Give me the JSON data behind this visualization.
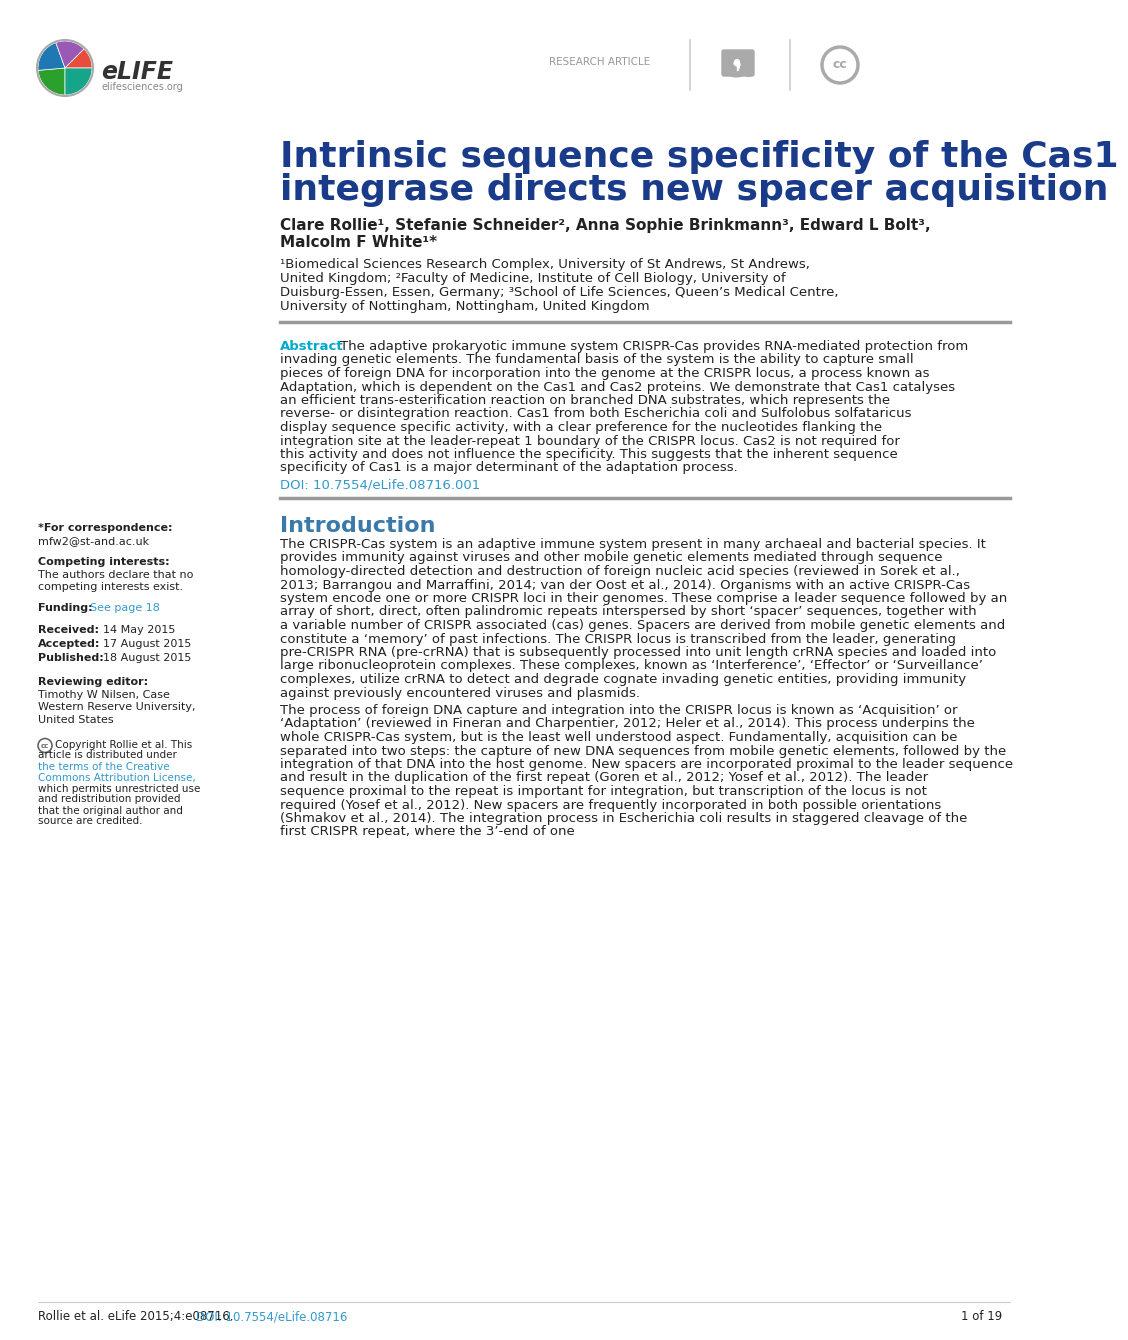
{
  "background_color": "#ffffff",
  "page_width": 10.2,
  "page_height": 13.2,
  "header_logo_text": "eLIFE",
  "header_logo_sub": "elifesciences.org",
  "header_research_article": "RESEARCH ARTICLE",
  "title_line1": "Intrinsic sequence specificity of the Cas1",
  "title_line2": "integrase directs new spacer acquisition",
  "title_color": "#1a3a8a",
  "title_fontsize": 26,
  "author_line1": "Clare Rollie¹, Stefanie Schneider², Anna Sophie Brinkmann³, Edward L Bolt³,",
  "author_line2": "Malcolm F White¹*",
  "authors_fontsize": 11,
  "affiliations_line1": "¹Biomedical Sciences Research Complex, University of St Andrews, St Andrews,",
  "affiliations_line2": "United Kingdom; ²Faculty of Medicine, Institute of Cell Biology, University of",
  "affiliations_line3": "Duisburg-Essen, Essen, Germany; ³School of Life Sciences, Queen’s Medical Centre,",
  "affiliations_line4": "University of Nottingham, Nottingham, United Kingdom",
  "affiliations_fontsize": 9.5,
  "abstract_label": "Abstract",
  "abstract_label_color": "#00aacc",
  "abstract_text": "The adaptive prokaryotic immune system CRISPR-Cas provides RNA-mediated protection from invading genetic elements. The fundamental basis of the system is the ability to capture small pieces of foreign DNA for incorporation into the genome at the CRISPR locus, a process known as Adaptation, which is dependent on the Cas1 and Cas2 proteins. We demonstrate that Cas1 catalyses an efficient trans-esterification reaction on branched DNA substrates, which represents the reverse- or disintegration reaction. Cas1 from both Escherichia coli and Sulfolobus solfataricus display sequence specific activity, with a clear preference for the nucleotides flanking the integration site at the leader-repeat 1 boundary of the CRISPR locus. Cas2 is not required for this activity and does not influence the specificity. This suggests that the inherent sequence specificity of Cas1 is a major determinant of the adaptation process.",
  "abstract_fontsize": 9.5,
  "doi_text": "DOI: 10.7554/eLife.08716.001",
  "doi_color": "#3399cc",
  "intro_title": "Introduction",
  "intro_title_color": "#3a7aaa",
  "intro_title_fontsize": 16,
  "intro_text_p1": "The CRISPR-Cas system is an adaptive immune system present in many archaeal and bacterial species. It provides immunity against viruses and other mobile genetic elements mediated through sequence homology-directed detection and destruction of foreign nucleic acid species (reviewed in Sorek et al., 2013; Barrangou and Marraffini, 2014; van der Oost et al., 2014). Organisms with an active CRISPR-Cas system encode one or more CRISPR loci in their genomes. These comprise a leader sequence followed by an array of short, direct, often palindromic repeats interspersed by short ‘spacer’ sequences, together with a variable number of CRISPR associated (cas) genes. Spacers are derived from mobile genetic elements and constitute a ‘memory’ of past infections. The CRISPR locus is transcribed from the leader, generating pre-CRISPR RNA (pre-crRNA) that is subsequently processed into unit length crRNA species and loaded into large ribonucleoprotein complexes. These complexes, known as ‘Interference’, ‘Effector’ or ‘Surveillance’ complexes, utilize crRNA to detect and degrade cognate invading genetic entities, providing immunity against previously encountered viruses and plasmids.",
  "intro_text_p2": "    The process of foreign DNA capture and integration into the CRISPR locus is known as ‘Acquisition’ or ‘Adaptation’ (reviewed in Fineran and Charpentier, 2012; Heler et al., 2014). This process underpins the whole CRISPR-Cas system, but is the least well understood aspect. Fundamentally, acquisition can be separated into two steps: the capture of new DNA sequences from mobile genetic elements, followed by the integration of that DNA into the host genome. New spacers are incorporated proximal to the leader sequence and result in the duplication of the first repeat (Goren et al., 2012; Yosef et al., 2012). The leader sequence proximal to the repeat is important for integration, but transcription of the locus is not required (Yosef et al., 2012). New spacers are frequently incorporated in both possible orientations (Shmakov et al., 2014). The integration process in Escherichia coli results in staggered cleavage of the first CRISPR repeat, where the 3’-end of one",
  "intro_fontsize": 9.5,
  "sidebar_correspondence_label": "*For correspondence:",
  "sidebar_correspondence_email": "mfw2@st-and.ac.uk",
  "sidebar_competing_label": "Competing interests:",
  "sidebar_competing_text": "The authors declare that no competing interests exist.",
  "sidebar_funding_label": "Funding:",
  "sidebar_funding_link": "See page 18",
  "sidebar_funding_link_color": "#3399cc",
  "sidebar_received_label": "Received:",
  "sidebar_received_text": "14 May 2015",
  "sidebar_accepted_label": "Accepted:",
  "sidebar_accepted_text": "17 August 2015",
  "sidebar_published_label": "Published:",
  "sidebar_published_text": "18 August 2015",
  "sidebar_reviewing_label": "Reviewing editor:",
  "sidebar_reviewing_text": "Timothy W Nilsen, Case Western Reserve University, United States",
  "sidebar_copyright_text": "Copyright Rollie et al. This article is distributed under the terms of the Creative Commons Attribution License, which permits unrestricted use and redistribution provided that the original author and source are credited.",
  "sidebar_cc_link_color": "#3399cc",
  "sidebar_fontsize": 8.0,
  "footer_text": "Rollie et al. eLife 2015;4:e08716.",
  "footer_doi": "DOI: 10.7554/eLife.08716",
  "footer_doi_color": "#3399cc",
  "footer_page": "1 of 19",
  "footer_fontsize": 8.5,
  "divider_color": "#999999",
  "text_color": "#222222"
}
